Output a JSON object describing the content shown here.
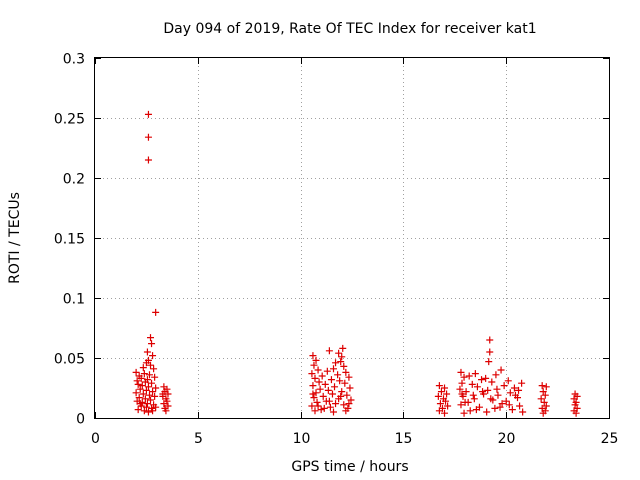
{
  "chart_data": {
    "type": "scatter",
    "title": "Day 094 of 2019, Rate Of TEC Index for receiver kat1",
    "xlabel": "GPS time / hours",
    "ylabel": "ROTI / TECUs",
    "xlim": [
      0,
      25
    ],
    "ylim": [
      0,
      0.3
    ],
    "x_ticks": [
      0,
      5,
      10,
      15,
      20,
      25
    ],
    "x_tick_labels": [
      "0",
      "5",
      "10",
      "15",
      "20",
      "25"
    ],
    "y_ticks": [
      0,
      0.05,
      0.1,
      0.15,
      0.2,
      0.25,
      0.3
    ],
    "y_tick_labels": [
      "0",
      "0.05",
      "0.1",
      "0.15",
      "0.2",
      "0.25",
      "0.3"
    ],
    "grid": true,
    "marker": "+",
    "color": "#dd0000",
    "series": [
      {
        "name": "ROTI",
        "points": [
          [
            2.6,
            0.253
          ],
          [
            2.6,
            0.234
          ],
          [
            2.6,
            0.215
          ],
          [
            2.95,
            0.088
          ],
          [
            2.7,
            0.067
          ],
          [
            2.75,
            0.062
          ],
          [
            2.55,
            0.055
          ],
          [
            2.8,
            0.052
          ],
          [
            2.6,
            0.048
          ],
          [
            2.5,
            0.046
          ],
          [
            2.7,
            0.044
          ],
          [
            2.35,
            0.042
          ],
          [
            2.85,
            0.041
          ],
          [
            2.0,
            0.038
          ],
          [
            2.4,
            0.037
          ],
          [
            2.65,
            0.036
          ],
          [
            2.15,
            0.035
          ],
          [
            2.9,
            0.034
          ],
          [
            2.25,
            0.033
          ],
          [
            2.55,
            0.032
          ],
          [
            2.05,
            0.031
          ],
          [
            2.45,
            0.03
          ],
          [
            2.75,
            0.029
          ],
          [
            2.1,
            0.028
          ],
          [
            2.3,
            0.027
          ],
          [
            2.6,
            0.026
          ],
          [
            2.95,
            0.025
          ],
          [
            2.2,
            0.024
          ],
          [
            2.5,
            0.023
          ],
          [
            2.8,
            0.022
          ],
          [
            2.0,
            0.021
          ],
          [
            2.35,
            0.02
          ],
          [
            2.65,
            0.019
          ],
          [
            2.9,
            0.018
          ],
          [
            2.15,
            0.017
          ],
          [
            2.45,
            0.016
          ],
          [
            2.7,
            0.015
          ],
          [
            2.05,
            0.014
          ],
          [
            2.3,
            0.013
          ],
          [
            2.55,
            0.012
          ],
          [
            2.85,
            0.011
          ],
          [
            2.25,
            0.01
          ],
          [
            2.5,
            0.009
          ],
          [
            2.75,
            0.008
          ],
          [
            2.1,
            0.007
          ],
          [
            2.4,
            0.006
          ],
          [
            2.6,
            0.005
          ],
          [
            2.95,
            0.009
          ],
          [
            2.2,
            0.012
          ],
          [
            2.8,
            0.006
          ],
          [
            3.35,
            0.026
          ],
          [
            3.5,
            0.024
          ],
          [
            3.4,
            0.022
          ],
          [
            3.55,
            0.02
          ],
          [
            3.3,
            0.018
          ],
          [
            3.45,
            0.016
          ],
          [
            3.5,
            0.014
          ],
          [
            3.35,
            0.012
          ],
          [
            3.55,
            0.01
          ],
          [
            3.4,
            0.008
          ],
          [
            3.45,
            0.006
          ],
          [
            3.3,
            0.02
          ],
          [
            12.05,
            0.058
          ],
          [
            11.85,
            0.054
          ],
          [
            11.4,
            0.056
          ],
          [
            12.0,
            0.051
          ],
          [
            10.6,
            0.052
          ],
          [
            10.75,
            0.048
          ],
          [
            11.95,
            0.047
          ],
          [
            11.7,
            0.046
          ],
          [
            10.65,
            0.044
          ],
          [
            12.1,
            0.043
          ],
          [
            11.6,
            0.041
          ],
          [
            10.85,
            0.04
          ],
          [
            11.3,
            0.039
          ],
          [
            12.2,
            0.038
          ],
          [
            10.55,
            0.037
          ],
          [
            11.8,
            0.036
          ],
          [
            11.05,
            0.035
          ],
          [
            12.35,
            0.034
          ],
          [
            10.7,
            0.033
          ],
          [
            11.5,
            0.032
          ],
          [
            11.9,
            0.031
          ],
          [
            10.9,
            0.03
          ],
          [
            12.15,
            0.029
          ],
          [
            11.2,
            0.028
          ],
          [
            10.6,
            0.027
          ],
          [
            11.65,
            0.026
          ],
          [
            12.4,
            0.025
          ],
          [
            10.95,
            0.024
          ],
          [
            11.35,
            0.023
          ],
          [
            12.0,
            0.022
          ],
          [
            10.75,
            0.021
          ],
          [
            11.55,
            0.02
          ],
          [
            12.25,
            0.019
          ],
          [
            11.1,
            0.018
          ],
          [
            10.65,
            0.017
          ],
          [
            11.85,
            0.016
          ],
          [
            12.45,
            0.015
          ],
          [
            11.25,
            0.014
          ],
          [
            10.8,
            0.013
          ],
          [
            11.7,
            0.012
          ],
          [
            12.1,
            0.011
          ],
          [
            10.55,
            0.01
          ],
          [
            11.45,
            0.009
          ],
          [
            12.3,
            0.008
          ],
          [
            11.0,
            0.007
          ],
          [
            10.7,
            0.006
          ],
          [
            11.6,
            0.005
          ],
          [
            12.2,
            0.006
          ],
          [
            11.15,
            0.008
          ],
          [
            10.85,
            0.01
          ],
          [
            12.35,
            0.012
          ],
          [
            11.4,
            0.014
          ],
          [
            11.95,
            0.018
          ],
          [
            10.6,
            0.02
          ],
          [
            16.75,
            0.027
          ],
          [
            17.0,
            0.025
          ],
          [
            16.85,
            0.022
          ],
          [
            17.1,
            0.02
          ],
          [
            16.7,
            0.018
          ],
          [
            16.95,
            0.016
          ],
          [
            17.05,
            0.014
          ],
          [
            16.8,
            0.012
          ],
          [
            17.15,
            0.01
          ],
          [
            16.9,
            0.008
          ],
          [
            16.75,
            0.006
          ],
          [
            17.0,
            0.004
          ],
          [
            19.2,
            0.065
          ],
          [
            19.2,
            0.055
          ],
          [
            19.15,
            0.047
          ],
          [
            19.75,
            0.04
          ],
          [
            17.8,
            0.038
          ],
          [
            18.5,
            0.037
          ],
          [
            19.5,
            0.036
          ],
          [
            18.2,
            0.035
          ],
          [
            17.95,
            0.034
          ],
          [
            19.0,
            0.033
          ],
          [
            18.8,
            0.032
          ],
          [
            20.1,
            0.031
          ],
          [
            19.3,
            0.03
          ],
          [
            17.85,
            0.029
          ],
          [
            18.35,
            0.028
          ],
          [
            20.75,
            0.029
          ],
          [
            19.9,
            0.027
          ],
          [
            18.6,
            0.026
          ],
          [
            20.4,
            0.025
          ],
          [
            17.75,
            0.024
          ],
          [
            19.1,
            0.023
          ],
          [
            18.05,
            0.022
          ],
          [
            20.2,
            0.021
          ],
          [
            18.9,
            0.02
          ],
          [
            19.6,
            0.019
          ],
          [
            17.9,
            0.018
          ],
          [
            20.55,
            0.017
          ],
          [
            18.45,
            0.016
          ],
          [
            19.35,
            0.015
          ],
          [
            20.0,
            0.014
          ],
          [
            18.15,
            0.013
          ],
          [
            19.8,
            0.012
          ],
          [
            17.8,
            0.011
          ],
          [
            20.65,
            0.01
          ],
          [
            18.7,
            0.009
          ],
          [
            19.45,
            0.008
          ],
          [
            20.3,
            0.007
          ],
          [
            18.25,
            0.006
          ],
          [
            19.05,
            0.005
          ],
          [
            17.95,
            0.004
          ],
          [
            20.8,
            0.005
          ],
          [
            18.55,
            0.007
          ],
          [
            19.7,
            0.009
          ],
          [
            20.15,
            0.011
          ],
          [
            18.0,
            0.013
          ],
          [
            19.25,
            0.016
          ],
          [
            20.45,
            0.019
          ],
          [
            18.85,
            0.022
          ],
          [
            17.85,
            0.02
          ],
          [
            19.55,
            0.024
          ],
          [
            20.6,
            0.023
          ],
          [
            18.4,
            0.019
          ],
          [
            21.75,
            0.027
          ],
          [
            21.95,
            0.026
          ],
          [
            21.8,
            0.022
          ],
          [
            21.9,
            0.019
          ],
          [
            21.7,
            0.016
          ],
          [
            21.85,
            0.013
          ],
          [
            21.95,
            0.01
          ],
          [
            21.75,
            0.008
          ],
          [
            21.9,
            0.006
          ],
          [
            21.8,
            0.004
          ],
          [
            23.35,
            0.02
          ],
          [
            23.45,
            0.018
          ],
          [
            23.3,
            0.016
          ],
          [
            23.4,
            0.013
          ],
          [
            23.35,
            0.011
          ],
          [
            23.45,
            0.008
          ],
          [
            23.3,
            0.006
          ],
          [
            23.4,
            0.004
          ]
        ]
      }
    ]
  }
}
